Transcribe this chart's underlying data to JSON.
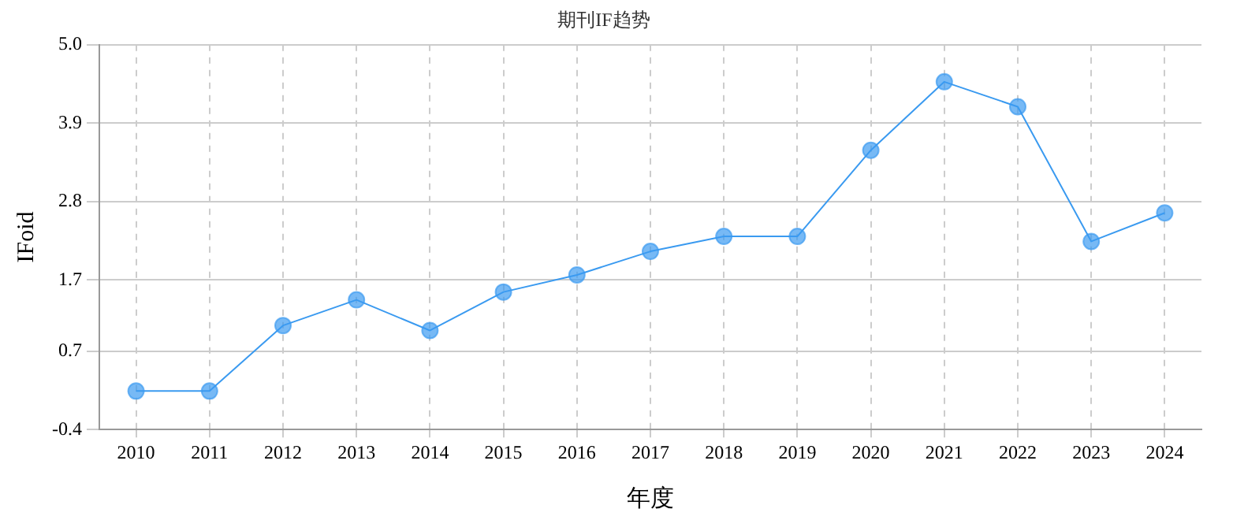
{
  "chart_data": {
    "type": "line",
    "title": "期刊IF趋势",
    "xlabel": "年度",
    "ylabel": "IFoid",
    "categories": [
      "2010",
      "2011",
      "2012",
      "2013",
      "2014",
      "2015",
      "2016",
      "2017",
      "2018",
      "2019",
      "2020",
      "2021",
      "2022",
      "2023",
      "2024"
    ],
    "series": [
      {
        "color": "#3a9af0",
        "values": [
          0.14,
          0.14,
          1.06,
          1.42,
          0.99,
          1.53,
          1.77,
          2.1,
          2.31,
          2.31,
          3.52,
          4.48,
          4.13,
          2.24,
          2.64
        ]
      }
    ],
    "ylim": [
      -0.4,
      5.0
    ],
    "yticks": [
      -0.4,
      0.7,
      1.7,
      2.8,
      3.9,
      {
        "value": 5.0,
        "label": "5.0"
      }
    ],
    "grid": true,
    "legend": false,
    "marker": "circle",
    "line_style": "solid"
  }
}
